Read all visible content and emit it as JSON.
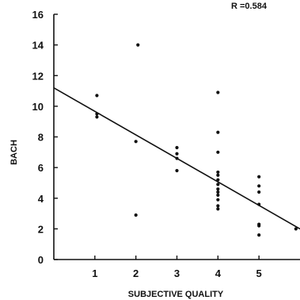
{
  "chart_data": {
    "type": "scatter",
    "xlabel": "SUBJECTIVE QUALITY",
    "ylabel": "BACH",
    "annotation": "R =0.584",
    "xlim": [
      0,
      6
    ],
    "ylim": [
      0,
      16
    ],
    "xticks": [
      1,
      2,
      3,
      4,
      5
    ],
    "yticks": [
      0,
      2,
      4,
      6,
      8,
      10,
      12,
      14,
      16
    ],
    "grid": false,
    "points": [
      {
        "x": 1.05,
        "y": 10.7
      },
      {
        "x": 1.05,
        "y": 9.5
      },
      {
        "x": 1.05,
        "y": 9.3
      },
      {
        "x": 2.05,
        "y": 14.0
      },
      {
        "x": 2.0,
        "y": 7.7
      },
      {
        "x": 2.0,
        "y": 2.9
      },
      {
        "x": 3.0,
        "y": 7.3
      },
      {
        "x": 3.0,
        "y": 6.9
      },
      {
        "x": 3.0,
        "y": 6.6
      },
      {
        "x": 3.0,
        "y": 5.8
      },
      {
        "x": 4.0,
        "y": 10.9
      },
      {
        "x": 4.0,
        "y": 8.3
      },
      {
        "x": 4.0,
        "y": 7.0
      },
      {
        "x": 4.0,
        "y": 5.7
      },
      {
        "x": 4.0,
        "y": 5.5
      },
      {
        "x": 4.0,
        "y": 5.2
      },
      {
        "x": 4.0,
        "y": 4.9
      },
      {
        "x": 4.0,
        "y": 4.6
      },
      {
        "x": 4.0,
        "y": 4.4
      },
      {
        "x": 4.0,
        "y": 4.2
      },
      {
        "x": 4.0,
        "y": 3.9
      },
      {
        "x": 4.0,
        "y": 3.5
      },
      {
        "x": 4.0,
        "y": 3.3
      },
      {
        "x": 5.0,
        "y": 5.4
      },
      {
        "x": 5.0,
        "y": 4.8
      },
      {
        "x": 5.0,
        "y": 4.4
      },
      {
        "x": 5.0,
        "y": 3.6
      },
      {
        "x": 5.0,
        "y": 2.3
      },
      {
        "x": 5.0,
        "y": 2.2
      },
      {
        "x": 5.0,
        "y": 1.6
      },
      {
        "x": 5.9,
        "y": 2.0
      }
    ],
    "regression": {
      "x": [
        0,
        6
      ],
      "y": [
        11.2,
        2.0
      ]
    }
  }
}
